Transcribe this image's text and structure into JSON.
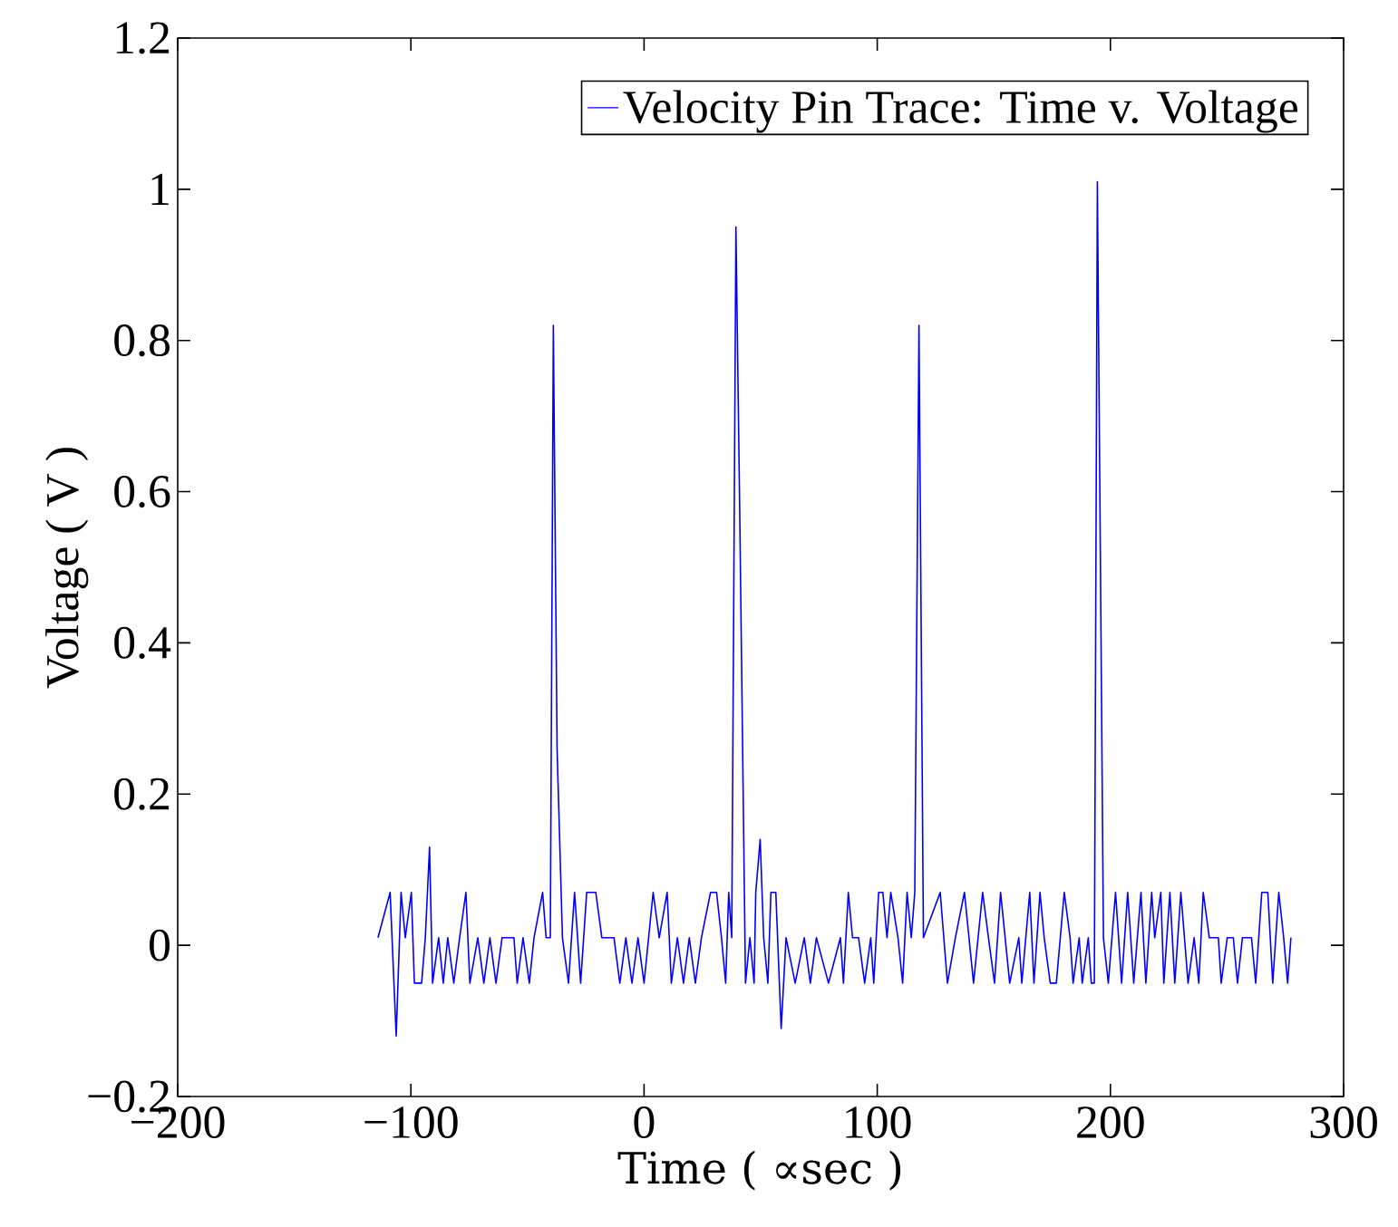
{
  "chart_data": {
    "type": "line",
    "xlabel": "Time ( ∝sec )",
    "ylabel": "Voltage ( V )",
    "legend": "top right",
    "xlim": [
      -200,
      300
    ],
    "ylim": [
      -0.2,
      1.2
    ],
    "xticks": [
      {
        "value": -200,
        "label": "−200"
      },
      {
        "value": -100,
        "label": "−100"
      },
      0,
      100,
      200,
      300
    ],
    "yticks": [
      {
        "value": -0.2,
        "label": "−0.2"
      },
      0,
      0.2,
      0.4,
      0.6,
      0.8,
      1,
      1.2
    ],
    "x": [
      -114.1,
      -108.9,
      -106.3,
      -104.2,
      -102.4,
      -99.8,
      -98.5,
      -95.4,
      -93.8,
      -92.0,
      -90.7,
      -88.1,
      -86.1,
      -84.2,
      -81.6,
      -79.1,
      -76.4,
      -74.7,
      -71.3,
      -68.7,
      -66.1,
      -63.5,
      -60.9,
      -55.8,
      -54.4,
      -51.9,
      -49.2,
      -47.2,
      -43.5,
      -42.0,
      -40.2,
      -38.9,
      -37.3,
      -35.0,
      -32.4,
      -29.8,
      -27.2,
      -24.6,
      -20.7,
      -18.1,
      -12.9,
      -10.4,
      -7.8,
      -5.2,
      -2.6,
      0,
      3.9,
      6.5,
      9.9,
      11.7,
      14.3,
      16.9,
      19.4,
      22.0,
      24.6,
      28.5,
      31.1,
      33.2,
      35.0,
      36.3,
      37.6,
      39.4,
      41.0,
      43.5,
      45.4,
      47.2,
      47.9,
      49.8,
      51.3,
      53.1,
      54.4,
      56.5,
      58.8,
      60.9,
      64.8,
      68.7,
      71.3,
      73.9,
      79.1,
      84.2,
      85.5,
      87.6,
      89.4,
      92.0,
      94.6,
      97.2,
      98.5,
      100.6,
      102.4,
      104.2,
      105.8,
      108.9,
      110.9,
      112.8,
      114.6,
      116.1,
      117.9,
      119.8,
      127.0,
      130.1,
      133.5,
      137.4,
      141.3,
      145.2,
      147.7,
      150.3,
      152.9,
      156.8,
      160.7,
      162.0,
      165.4,
      167.2,
      169.8,
      171.6,
      174.2,
      176.8,
      180.2,
      182.7,
      184.0,
      186.6,
      187.9,
      190.5,
      191.8,
      193.1,
      194.4,
      197.0,
      199.1,
      202.2,
      204.8,
      207.4,
      210.0,
      213.1,
      215.2,
      217.7,
      219.0,
      221.6,
      222.9,
      225.5,
      227.6,
      230.2,
      233.3,
      235.9,
      237.9,
      239.8,
      242.4,
      246.3,
      247.5,
      250.1,
      252.7,
      254.5,
      256.6,
      260.5,
      262.3,
      264.9,
      267.5,
      269.6,
      272.2,
      274.3,
      276.0,
      277.4
    ],
    "series": [
      {
        "name": "Velocity Pin Trace: Time v. Voltage",
        "color": "#0000ff",
        "values": [
          0.01,
          0.07,
          -0.12,
          0.07,
          0.01,
          0.07,
          -0.05,
          -0.05,
          0.01,
          0.13,
          -0.05,
          0.01,
          -0.05,
          0.01,
          -0.05,
          0.01,
          0.07,
          -0.05,
          0.01,
          -0.05,
          0.01,
          -0.05,
          0.01,
          0.01,
          -0.05,
          0.01,
          -0.05,
          0.01,
          0.07,
          0.01,
          0.01,
          0.82,
          0.26,
          0.01,
          -0.05,
          0.07,
          -0.05,
          0.07,
          0.07,
          0.01,
          0.01,
          -0.05,
          0.01,
          -0.05,
          0.01,
          -0.05,
          0.07,
          0.01,
          0.07,
          -0.05,
          0.01,
          -0.05,
          0.01,
          -0.05,
          0.01,
          0.07,
          0.07,
          0.01,
          -0.05,
          0.07,
          0.01,
          0.95,
          0.58,
          -0.05,
          0.01,
          -0.05,
          0.07,
          0.14,
          0.01,
          -0.05,
          0.07,
          0.07,
          -0.11,
          0.01,
          -0.05,
          0.01,
          -0.05,
          0.01,
          -0.05,
          0.01,
          -0.05,
          0.07,
          0.01,
          0.01,
          -0.05,
          0.01,
          -0.05,
          0.07,
          0.07,
          0.01,
          0.07,
          0.01,
          -0.05,
          0.07,
          0.01,
          0.07,
          0.82,
          0.01,
          0.07,
          -0.05,
          0.01,
          0.07,
          -0.05,
          0.07,
          0.01,
          -0.05,
          0.07,
          -0.05,
          0.01,
          -0.05,
          0.07,
          -0.05,
          0.07,
          0.01,
          -0.05,
          -0.05,
          0.07,
          0.01,
          -0.05,
          0.01,
          -0.05,
          0.01,
          -0.05,
          -0.05,
          1.01,
          0.01,
          -0.05,
          0.07,
          -0.05,
          0.07,
          -0.05,
          0.07,
          -0.05,
          0.07,
          0.01,
          0.07,
          -0.05,
          0.07,
          -0.05,
          0.07,
          -0.05,
          0.01,
          -0.05,
          0.07,
          0.01,
          0.01,
          -0.05,
          0.01,
          0.01,
          -0.05,
          0.01,
          0.01,
          -0.05,
          0.07,
          0.07,
          -0.05,
          0.07,
          0.01,
          -0.05,
          0.01
        ]
      }
    ]
  }
}
